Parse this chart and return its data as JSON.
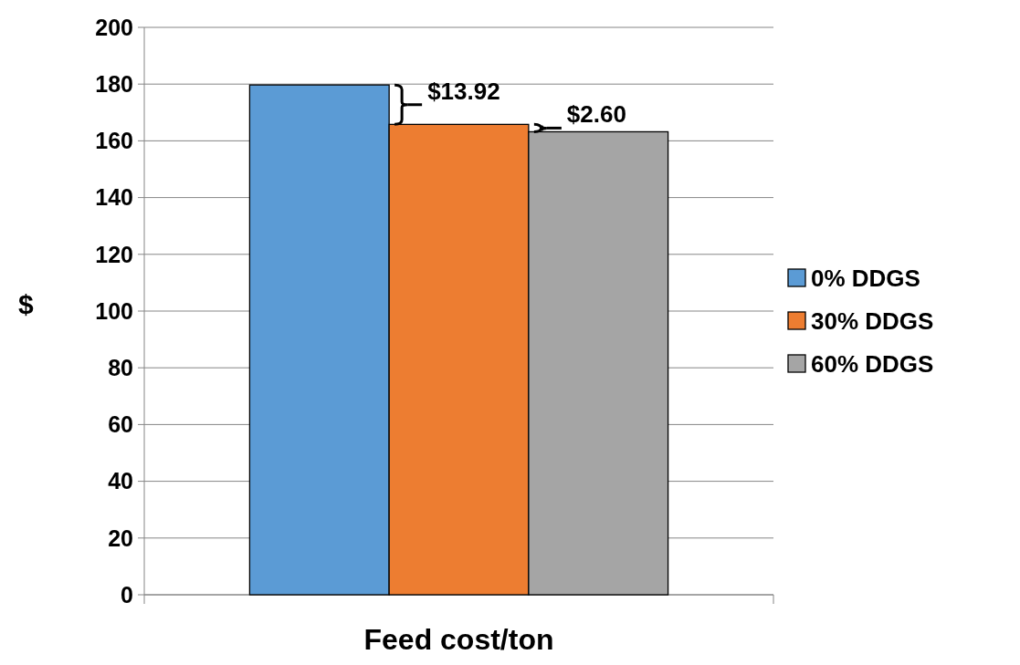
{
  "chart_data": {
    "type": "bar",
    "categories": [
      "Feed cost/ton"
    ],
    "ylabel": "$",
    "series": [
      {
        "name": "0% DDGS",
        "color": "#5b9bd5",
        "values": [
          179.7
        ]
      },
      {
        "name": "30% DDGS",
        "color": "#ed7d31",
        "values": [
          165.8
        ]
      },
      {
        "name": "60% DDGS",
        "color": "#a5a5a5",
        "values": [
          163.2
        ]
      }
    ],
    "ylim": [
      0,
      200
    ],
    "yticks": [
      0,
      20,
      40,
      60,
      80,
      100,
      120,
      140,
      160,
      180,
      200
    ],
    "grid": "y",
    "legend": "right",
    "annotations": [
      "$13.92",
      "$2.60"
    ]
  }
}
